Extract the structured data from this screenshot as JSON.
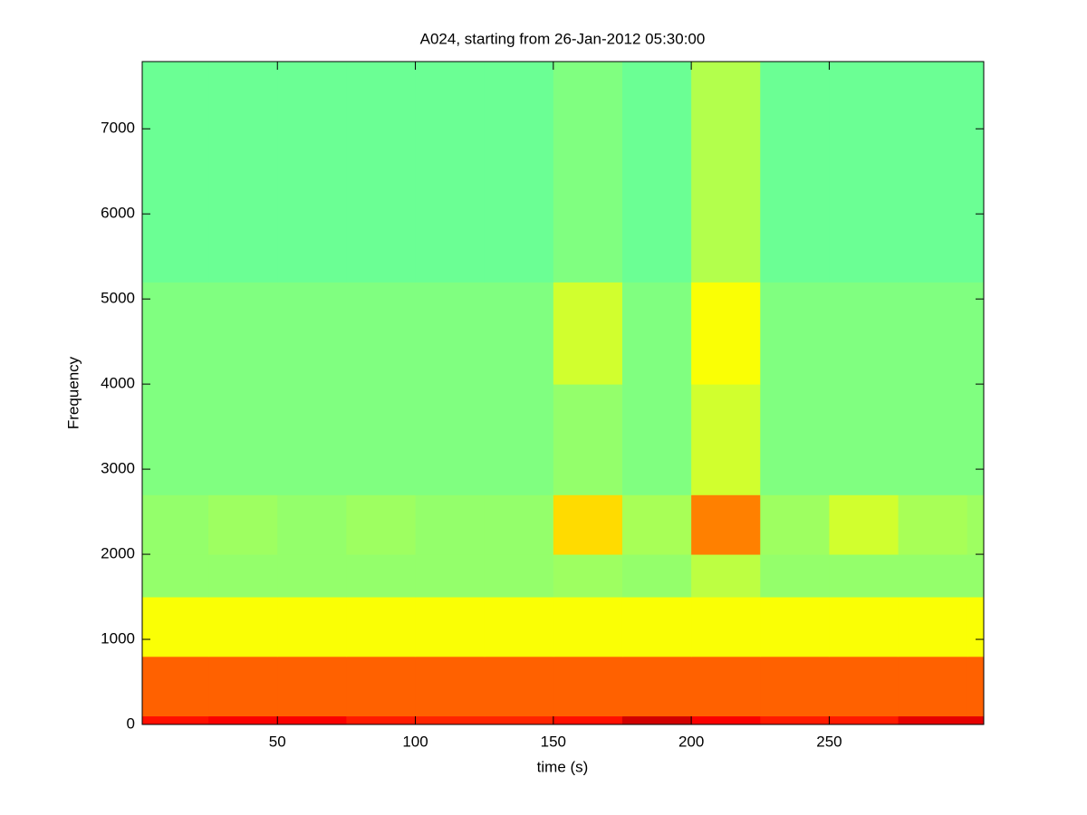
{
  "chart_data": {
    "type": "spectrogram",
    "title": "A024, starting from 26-Jan-2012 05:30:00",
    "xlabel": "time (s)",
    "ylabel": "Frequency",
    "xlim": [
      1,
      306
    ],
    "ylim": [
      0,
      7790
    ],
    "xticks": [
      50,
      100,
      150,
      200,
      250
    ],
    "yticks": [
      0,
      1000,
      2000,
      3000,
      4000,
      5000,
      6000,
      7000
    ],
    "colormap": "jet",
    "xbins": [
      1,
      25,
      50,
      75,
      100,
      125,
      150,
      175,
      200,
      225,
      250,
      275,
      300,
      306
    ],
    "ybins": [
      0,
      100,
      800,
      1500,
      2000,
      2700,
      4000,
      5200,
      7790
    ],
    "z": [
      [
        0.86,
        0.88,
        0.88,
        0.85,
        0.84,
        0.84,
        0.86,
        0.92,
        0.88,
        0.85,
        0.85,
        0.9,
        0.9
      ],
      [
        0.78,
        0.78,
        0.78,
        0.78,
        0.78,
        0.78,
        0.78,
        0.78,
        0.78,
        0.78,
        0.78,
        0.78,
        0.78
      ],
      [
        0.62,
        0.62,
        0.62,
        0.62,
        0.62,
        0.62,
        0.62,
        0.62,
        0.62,
        0.62,
        0.62,
        0.62,
        0.62
      ],
      [
        0.52,
        0.52,
        0.52,
        0.52,
        0.52,
        0.52,
        0.53,
        0.52,
        0.56,
        0.52,
        0.52,
        0.52,
        0.52
      ],
      [
        0.52,
        0.53,
        0.52,
        0.53,
        0.52,
        0.52,
        0.66,
        0.54,
        0.75,
        0.53,
        0.58,
        0.54,
        0.53
      ],
      [
        0.5,
        0.5,
        0.5,
        0.5,
        0.5,
        0.5,
        0.52,
        0.5,
        0.58,
        0.5,
        0.5,
        0.5,
        0.5
      ],
      [
        0.5,
        0.5,
        0.5,
        0.5,
        0.5,
        0.5,
        0.58,
        0.5,
        0.62,
        0.5,
        0.5,
        0.5,
        0.5
      ],
      [
        0.48,
        0.48,
        0.48,
        0.48,
        0.48,
        0.48,
        0.5,
        0.48,
        0.55,
        0.48,
        0.48,
        0.48,
        0.48
      ]
    ]
  }
}
